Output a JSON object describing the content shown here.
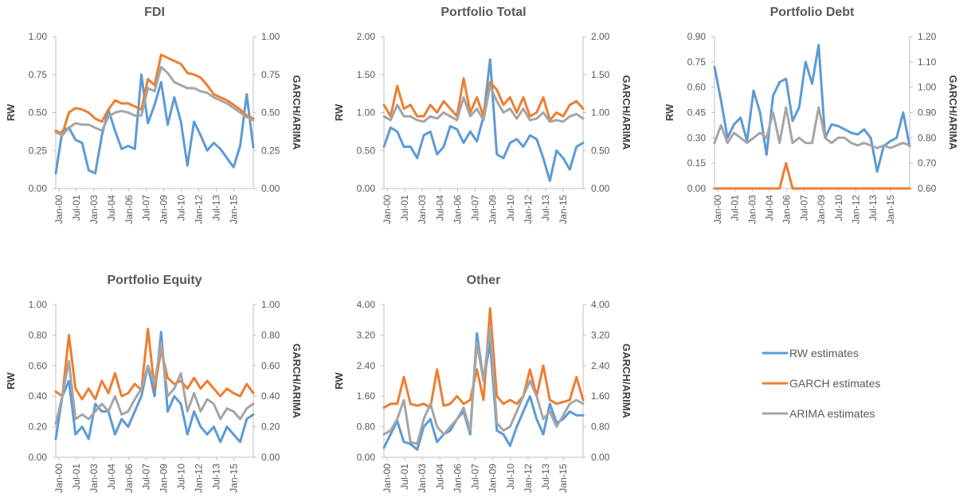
{
  "colors": {
    "rw": "#5B9BD5",
    "garch": "#ED7D31",
    "arima": "#A5A5A5",
    "text": "#595959",
    "axis": "#BFBFBF"
  },
  "legend": {
    "placement": "right",
    "entries": [
      {
        "key": "rw",
        "label": "RW estimates"
      },
      {
        "key": "garch",
        "label": "GARCH estimates"
      },
      {
        "key": "arima",
        "label": "ARIMA estimates"
      }
    ]
  },
  "chart_data": [
    {
      "type": "line",
      "title": "FDI",
      "ylabel": "RW",
      "y2label": "GARCH/ARIMA",
      "x_tick_labels": [
        "Jan-00",
        "Jul-01",
        "Jan-03",
        "Jul-04",
        "Jan-06",
        "Jul-07",
        "Jan-09",
        "Jul-10",
        "Jan-12",
        "Jul-13",
        "Jan-15"
      ],
      "ylim": [
        0,
        1.0
      ],
      "y_ticks": [
        "0.00",
        "0.25",
        "0.50",
        "0.75",
        "1.00"
      ],
      "y2lim": [
        0,
        1.0
      ],
      "y2_ticks": [
        "0.00",
        "0.25",
        "0.50",
        "0.75",
        "1.00"
      ],
      "series": [
        {
          "key": "rw",
          "name": "RW estimates",
          "values": [
            0.1,
            0.38,
            0.4,
            0.32,
            0.3,
            0.12,
            0.1,
            0.35,
            0.52,
            0.38,
            0.26,
            0.28,
            0.26,
            0.75,
            0.43,
            0.55,
            0.7,
            0.42,
            0.6,
            0.44,
            0.15,
            0.44,
            0.35,
            0.25,
            0.3,
            0.26,
            0.2,
            0.14,
            0.28,
            0.62,
            0.27
          ]
        },
        {
          "key": "garch",
          "name": "GARCH estimates",
          "values": [
            0.38,
            0.36,
            0.5,
            0.53,
            0.52,
            0.5,
            0.46,
            0.44,
            0.52,
            0.58,
            0.56,
            0.56,
            0.54,
            0.52,
            0.72,
            0.68,
            0.88,
            0.86,
            0.84,
            0.82,
            0.76,
            0.75,
            0.73,
            0.68,
            0.62,
            0.6,
            0.58,
            0.55,
            0.52,
            0.48,
            0.46
          ]
        },
        {
          "key": "arima",
          "name": "ARIMA estimates",
          "values": [
            0.37,
            0.35,
            0.4,
            0.43,
            0.42,
            0.42,
            0.4,
            0.38,
            0.47,
            0.5,
            0.51,
            0.5,
            0.48,
            0.48,
            0.66,
            0.64,
            0.8,
            0.76,
            0.7,
            0.68,
            0.66,
            0.66,
            0.64,
            0.63,
            0.6,
            0.58,
            0.56,
            0.53,
            0.5,
            0.47,
            0.45
          ]
        }
      ]
    },
    {
      "type": "line",
      "title": "Portfolio Total",
      "ylabel": "RW",
      "y2label": "GARCH/ARIMA",
      "x_tick_labels": [
        "Jan-00",
        "Jul-01",
        "Jan-03",
        "Jul-04",
        "Jan-06",
        "Jul-07",
        "Jan-09",
        "Jul-10",
        "Jan-12",
        "Jul-13",
        "Jan-15"
      ],
      "ylim": [
        0,
        2.0
      ],
      "y_ticks": [
        "0.00",
        "0.50",
        "1.00",
        "1.50",
        "2.00"
      ],
      "y2lim": [
        0,
        2.0
      ],
      "y2_ticks": [
        "0.00",
        "0.50",
        "1.00",
        "1.50",
        "2.00"
      ],
      "series": [
        {
          "key": "rw",
          "name": "RW estimates",
          "values": [
            0.55,
            0.8,
            0.75,
            0.55,
            0.55,
            0.4,
            0.7,
            0.75,
            0.45,
            0.55,
            0.82,
            0.78,
            0.6,
            0.75,
            0.62,
            0.95,
            1.7,
            0.45,
            0.4,
            0.6,
            0.65,
            0.55,
            0.7,
            0.65,
            0.4,
            0.1,
            0.5,
            0.4,
            0.25,
            0.55,
            0.6
          ]
        },
        {
          "key": "garch",
          "name": "GARCH estimates",
          "values": [
            1.1,
            0.95,
            1.35,
            1.05,
            1.1,
            0.95,
            0.95,
            1.1,
            1.0,
            1.15,
            1.05,
            0.95,
            1.45,
            1.0,
            1.2,
            0.95,
            1.4,
            1.3,
            1.1,
            1.2,
            1.0,
            1.2,
            0.95,
            1.0,
            1.2,
            0.9,
            1.0,
            0.95,
            1.1,
            1.15,
            1.05
          ]
        },
        {
          "key": "arima",
          "name": "ARIMA estimates",
          "values": [
            0.95,
            0.9,
            1.1,
            0.95,
            0.95,
            0.9,
            0.88,
            0.95,
            0.92,
            1.0,
            0.95,
            0.9,
            1.2,
            0.95,
            1.05,
            0.9,
            1.35,
            1.15,
            1.0,
            1.05,
            0.92,
            1.05,
            0.9,
            0.92,
            1.0,
            0.88,
            0.9,
            0.88,
            0.95,
            0.98,
            0.92
          ]
        }
      ]
    },
    {
      "type": "line",
      "title": "Portfolio Debt",
      "ylabel": "RW",
      "y2label": "GARCH/ARIMA",
      "x_tick_labels": [
        "Jan-00",
        "Jul-01",
        "Jan-03",
        "Jul-04",
        "Jan-06",
        "Jul-07",
        "Jan-09",
        "Jul-10",
        "Jan-12",
        "Jul-13",
        "Jan-15"
      ],
      "ylim": [
        0,
        0.9
      ],
      "y_ticks": [
        "0.00",
        "0.15",
        "0.30",
        "0.45",
        "0.60",
        "0.75",
        "0.90"
      ],
      "y2lim": [
        0.6,
        1.2
      ],
      "y2_ticks": [
        "0.60",
        "0.70",
        "0.80",
        "0.90",
        "1.00",
        "1.10",
        "1.20"
      ],
      "series": [
        {
          "key": "rw",
          "name": "RW estimates",
          "values": [
            0.72,
            0.52,
            0.3,
            0.38,
            0.42,
            0.28,
            0.58,
            0.45,
            0.2,
            0.55,
            0.63,
            0.65,
            0.4,
            0.48,
            0.75,
            0.62,
            0.85,
            0.3,
            0.38,
            0.37,
            0.35,
            0.33,
            0.32,
            0.35,
            0.3,
            0.1,
            0.25,
            0.28,
            0.3,
            0.45,
            0.25
          ]
        },
        {
          "key": "garch",
          "name": "GARCH estimates",
          "values": [
            0.3,
            0.45,
            0.28,
            0.45,
            0.3,
            0.38,
            0.28,
            0.3,
            0.45,
            0.3,
            0.55,
            0.7,
            0.3,
            0.4,
            0.3,
            0.28,
            0.55,
            0.4,
            0.3,
            0.35,
            0.38,
            0.3,
            0.28,
            0.3,
            0.28,
            0.25,
            0.28,
            0.27,
            0.28,
            0.3,
            0.28
          ]
        },
        {
          "key": "arima",
          "name": "ARIMA estimates",
          "values": [
            0.78,
            0.85,
            0.78,
            0.82,
            0.8,
            0.78,
            0.8,
            0.82,
            0.8,
            0.9,
            0.78,
            0.92,
            0.78,
            0.8,
            0.78,
            0.78,
            0.92,
            0.8,
            0.78,
            0.8,
            0.8,
            0.78,
            0.77,
            0.78,
            0.77,
            0.76,
            0.77,
            0.76,
            0.77,
            0.78,
            0.77
          ]
        }
      ]
    },
    {
      "type": "line",
      "title": "Portfolio Equity",
      "ylabel": "RW",
      "y2label": "GARCH/ARIMA",
      "x_tick_labels": [
        "Jan-00",
        "Jul-01",
        "Jan-03",
        "Jul-04",
        "Jan-06",
        "Jul-07",
        "Jan-09",
        "Jul-10",
        "Jan-12",
        "Jul-13",
        "Jan-15"
      ],
      "ylim": [
        0,
        1.0
      ],
      "y_ticks": [
        "0.00",
        "0.20",
        "0.40",
        "0.60",
        "0.80",
        "1.00"
      ],
      "y2lim": [
        0,
        1.0
      ],
      "y2_ticks": [
        "0.00",
        "0.20",
        "0.40",
        "0.60",
        "0.80",
        "1.00"
      ],
      "series": [
        {
          "key": "rw",
          "name": "RW estimates",
          "values": [
            0.12,
            0.4,
            0.5,
            0.15,
            0.2,
            0.12,
            0.35,
            0.3,
            0.3,
            0.15,
            0.25,
            0.2,
            0.3,
            0.4,
            0.6,
            0.4,
            0.82,
            0.3,
            0.4,
            0.35,
            0.15,
            0.3,
            0.2,
            0.15,
            0.2,
            0.1,
            0.2,
            0.15,
            0.1,
            0.25,
            0.28
          ]
        },
        {
          "key": "garch",
          "name": "GARCH estimates",
          "values": [
            0.43,
            0.4,
            0.8,
            0.45,
            0.38,
            0.45,
            0.38,
            0.5,
            0.42,
            0.55,
            0.4,
            0.42,
            0.48,
            0.44,
            0.84,
            0.45,
            0.7,
            0.52,
            0.48,
            0.5,
            0.45,
            0.52,
            0.45,
            0.5,
            0.45,
            0.4,
            0.45,
            0.42,
            0.4,
            0.48,
            0.42
          ]
        },
        {
          "key": "arima",
          "name": "ARIMA estimates",
          "values": [
            0.22,
            0.4,
            0.63,
            0.25,
            0.28,
            0.25,
            0.3,
            0.35,
            0.3,
            0.4,
            0.28,
            0.3,
            0.38,
            0.45,
            0.6,
            0.48,
            0.75,
            0.4,
            0.45,
            0.55,
            0.3,
            0.42,
            0.3,
            0.38,
            0.35,
            0.25,
            0.32,
            0.3,
            0.25,
            0.32,
            0.35
          ]
        }
      ]
    },
    {
      "type": "line",
      "title": "Other",
      "ylabel": "RW",
      "y2label": "GARCH/ARIMA",
      "x_tick_labels": [
        "Jan-00",
        "Jul-01",
        "Jan-03",
        "Jul-04",
        "Jan-06",
        "Jul-07",
        "Jan-09",
        "Jul-10",
        "Jan-12",
        "Jul-13",
        "Jan-15"
      ],
      "ylim": [
        0,
        4.0
      ],
      "y_ticks": [
        "0.00",
        "0.80",
        "1.60",
        "2.40",
        "3.20",
        "4.00"
      ],
      "y2lim": [
        0,
        4.0
      ],
      "y2_ticks": [
        "0.00",
        "0.80",
        "1.60",
        "2.40",
        "3.20",
        "4.00"
      ],
      "series": [
        {
          "key": "rw",
          "name": "RW estimates",
          "values": [
            0.25,
            0.6,
            0.95,
            0.4,
            0.35,
            0.2,
            0.8,
            1.0,
            0.4,
            0.6,
            0.7,
            1.0,
            1.2,
            0.6,
            3.25,
            2.0,
            3.0,
            0.7,
            0.6,
            0.3,
            0.8,
            1.2,
            1.6,
            1.0,
            0.6,
            1.4,
            0.9,
            1.0,
            1.2,
            1.1,
            1.1
          ]
        },
        {
          "key": "garch",
          "name": "GARCH estimates",
          "values": [
            1.3,
            1.4,
            1.4,
            2.1,
            1.4,
            1.35,
            1.4,
            1.3,
            2.3,
            1.35,
            1.4,
            1.6,
            1.4,
            1.5,
            2.3,
            1.5,
            3.9,
            1.6,
            1.4,
            1.5,
            1.4,
            1.6,
            2.3,
            1.6,
            2.4,
            1.5,
            1.4,
            1.45,
            1.5,
            2.1,
            1.5
          ]
        },
        {
          "key": "arima",
          "name": "ARIMA estimates",
          "values": [
            0.6,
            0.7,
            1.0,
            1.5,
            0.4,
            0.35,
            1.0,
            1.4,
            0.8,
            0.6,
            0.8,
            1.0,
            1.3,
            0.7,
            3.0,
            2.0,
            3.4,
            0.9,
            0.7,
            0.8,
            1.2,
            1.6,
            2.0,
            1.6,
            1.0,
            1.2,
            0.8,
            1.1,
            1.4,
            1.5,
            1.4
          ]
        }
      ]
    }
  ]
}
